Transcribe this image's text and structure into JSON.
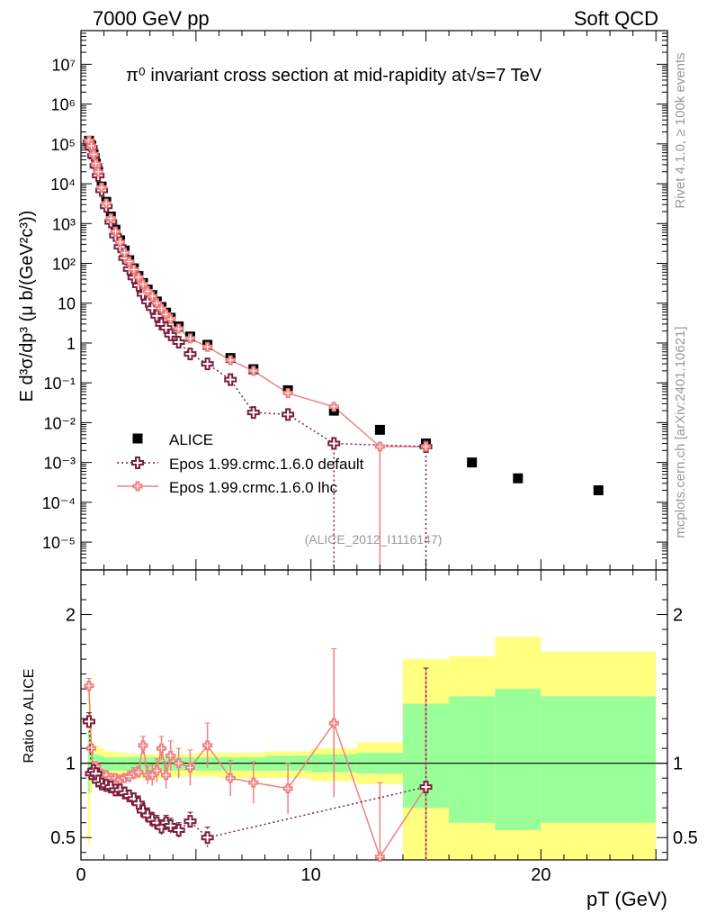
{
  "header": {
    "left": "7000 GeV pp",
    "right": "Soft QCD"
  },
  "side": {
    "rivet": "Rivet 4.1.0, ≥ 100k events",
    "mcplots": "mcplots.cern.ch [arXiv:2401.10621]"
  },
  "chart_data": [
    {
      "type": "scatter",
      "panel": "main",
      "title": "π⁰ invariant cross section at mid-rapidity at√s=7 TeV",
      "ylabel": "E d³σ/dp³ (μ b/(GeV²c³))",
      "xlabel": "pT (GeV)",
      "xlim": [
        0,
        25.5
      ],
      "ylim": [
        2e-06,
        70000000.0
      ],
      "yscale": "log",
      "ytick_labels": [
        "10⁻⁵",
        "10⁻⁴",
        "10⁻³",
        "10⁻²",
        "10⁻¹",
        "1",
        "10",
        "10²",
        "10³",
        "10⁴",
        "10⁵",
        "10⁶",
        "10⁷"
      ],
      "analysis_label": "(ALICE_2012_I1116147)",
      "legend": [
        "ALICE",
        "Epos 1.99.crmc.1.6.0 default",
        "Epos 1.99.crmc.1.6.0 lhc"
      ],
      "series": [
        {
          "name": "ALICE",
          "color": "#000000",
          "x": [
            0.35,
            0.45,
            0.55,
            0.65,
            0.75,
            0.9,
            1.1,
            1.3,
            1.5,
            1.7,
            1.9,
            2.1,
            2.3,
            2.5,
            2.7,
            2.9,
            3.1,
            3.3,
            3.5,
            3.7,
            3.9,
            4.25,
            4.75,
            5.5,
            6.5,
            7.5,
            9,
            11,
            13,
            15,
            17,
            19,
            22.5
          ],
          "y": [
            120000,
            90000,
            55000,
            32000,
            20000,
            8500,
            3500,
            1500,
            700,
            380,
            210,
            120,
            75,
            48,
            32,
            22,
            16,
            11,
            8,
            5.8,
            4.3,
            2.6,
            1.45,
            0.9,
            0.42,
            0.22,
            0.065,
            0.02,
            0.0066,
            0.003,
            0.001,
            0.0004,
            0.0002
          ]
        },
        {
          "name": "Epos 1.99.crmc.1.6.0 default",
          "color": "#7a1f3d",
          "x": [
            0.35,
            0.45,
            0.55,
            0.65,
            0.75,
            0.9,
            1.1,
            1.3,
            1.5,
            1.7,
            1.9,
            2.1,
            2.3,
            2.5,
            2.7,
            2.9,
            3.1,
            3.3,
            3.5,
            3.7,
            3.9,
            4.25,
            4.75,
            5.5,
            6.5,
            7.5,
            9,
            11,
            15
          ],
          "y": [
            110000,
            80000,
            50000,
            28000,
            16000,
            6800,
            2700,
            1100,
            500,
            260,
            135,
            72,
            44,
            28,
            17,
            11,
            7.5,
            4.8,
            3,
            2.4,
            1.6,
            1.05,
            0.53,
            0.3,
            0.12,
            0.018,
            0.016,
            0.003,
            0.0025
          ]
        },
        {
          "name": "Epos 1.99.crmc.1.6.0 lhc",
          "color": "#f08080",
          "x": [
            0.35,
            0.45,
            0.55,
            0.65,
            0.75,
            0.9,
            1.1,
            1.3,
            1.5,
            1.7,
            1.9,
            2.1,
            2.3,
            2.5,
            2.7,
            2.9,
            3.1,
            3.3,
            3.5,
            3.7,
            3.9,
            4.25,
            4.75,
            5.5,
            6.5,
            7.5,
            9,
            11,
            13,
            15
          ],
          "y": [
            120000,
            90000,
            55000,
            32000,
            20000,
            8000,
            3200,
            1350,
            630,
            340,
            185,
            110,
            70,
            45,
            30,
            20,
            15,
            10,
            7.3,
            5.2,
            4,
            2.3,
            1.3,
            0.8,
            0.37,
            0.2,
            0.055,
            0.025,
            0.0025,
            0.0025
          ]
        }
      ]
    },
    {
      "type": "scatter",
      "panel": "ratio",
      "ylabel": "Ratio to ALICE",
      "xlabel": "pT (GeV)",
      "xlim": [
        0,
        25.5
      ],
      "ylim": [
        0.35,
        2.3
      ],
      "ytick_labels": [
        "0.5",
        "1",
        "2"
      ],
      "xtick_labels": [
        "0",
        "10",
        "20"
      ],
      "series": [
        {
          "name": "Epos 1.99.crmc.1.6.0 default",
          "color": "#7a1f3d",
          "x": [
            0.35,
            0.45,
            0.55,
            0.65,
            0.75,
            0.9,
            1.1,
            1.3,
            1.5,
            1.7,
            1.9,
            2.1,
            2.3,
            2.5,
            2.7,
            2.9,
            3.1,
            3.3,
            3.5,
            3.7,
            3.9,
            4.25,
            4.75,
            5.5,
            15
          ],
          "y": [
            1.28,
            0.93,
            0.95,
            0.93,
            0.88,
            0.86,
            0.85,
            0.84,
            0.82,
            0.82,
            0.8,
            0.78,
            0.76,
            0.73,
            0.68,
            0.65,
            0.62,
            0.6,
            0.57,
            0.6,
            0.58,
            0.55,
            0.61,
            0.5,
            0.84
          ],
          "yerr": [
            0.06,
            0.02,
            0.02,
            0.02,
            0.02,
            0.02,
            0.02,
            0.03,
            0.03,
            0.03,
            0.04,
            0.04,
            0.04,
            0.05,
            0.05,
            0.05,
            0.05,
            0.05,
            0.05,
            0.05,
            0.05,
            0.05,
            0.06,
            0.07,
            0.8
          ]
        },
        {
          "name": "Epos 1.99.crmc.1.6.0 lhc",
          "color": "#f08080",
          "x": [
            0.35,
            0.45,
            0.55,
            0.65,
            0.75,
            0.9,
            1.1,
            1.3,
            1.5,
            1.7,
            1.9,
            2.1,
            2.3,
            2.5,
            2.7,
            2.9,
            3.1,
            3.3,
            3.5,
            3.7,
            3.9,
            4.25,
            4.75,
            5.5,
            6.5,
            7.5,
            9,
            11,
            13,
            15
          ],
          "y": [
            1.52,
            1.1,
            0.95,
            0.98,
            0.92,
            0.93,
            0.92,
            0.9,
            0.9,
            0.89,
            0.9,
            0.91,
            0.93,
            0.94,
            1.12,
            0.92,
            0.92,
            0.95,
            1.1,
            0.92,
            1.05,
            1.0,
            0.97,
            1.12,
            0.9,
            0.87,
            0.83,
            1.27,
            0.37,
            0.84
          ],
          "yerr": [
            0.05,
            0.02,
            0.02,
            0.02,
            0.02,
            0.02,
            0.02,
            0.02,
            0.02,
            0.03,
            0.03,
            0.04,
            0.04,
            0.04,
            0.06,
            0.06,
            0.07,
            0.08,
            0.08,
            0.09,
            0.1,
            0.1,
            0.12,
            0.15,
            0.12,
            0.14,
            0.17,
            0.5,
            0.5,
            0.8
          ]
        }
      ],
      "bands": {
        "edges": [
          0.3,
          0.4,
          0.5,
          0.6,
          0.8,
          1,
          1.5,
          2,
          3,
          4,
          5,
          6,
          7,
          8,
          10,
          12,
          14,
          16,
          18,
          20,
          25
        ],
        "yellow_lo": [
          0.45,
          0.8,
          0.88,
          0.9,
          0.9,
          0.9,
          0.9,
          0.9,
          0.9,
          0.91,
          0.91,
          0.9,
          0.9,
          0.9,
          0.88,
          0.86,
          0.3,
          0.3,
          0.3,
          0.3
        ],
        "yellow_hi": [
          1.55,
          1.2,
          1.14,
          1.12,
          1.1,
          1.08,
          1.07,
          1.06,
          1.06,
          1.06,
          1.07,
          1.07,
          1.07,
          1.08,
          1.1,
          1.14,
          1.7,
          1.72,
          1.85,
          1.75
        ],
        "green_lo": [
          0.8,
          0.9,
          0.92,
          0.93,
          0.94,
          0.95,
          0.95,
          0.95,
          0.95,
          0.95,
          0.95,
          0.95,
          0.95,
          0.95,
          0.94,
          0.93,
          0.7,
          0.6,
          0.55,
          0.6
        ],
        "green_hi": [
          1.22,
          1.1,
          1.07,
          1.06,
          1.05,
          1.04,
          1.04,
          1.04,
          1.04,
          1.04,
          1.04,
          1.04,
          1.04,
          1.05,
          1.06,
          1.07,
          1.4,
          1.45,
          1.5,
          1.45
        ]
      }
    }
  ]
}
